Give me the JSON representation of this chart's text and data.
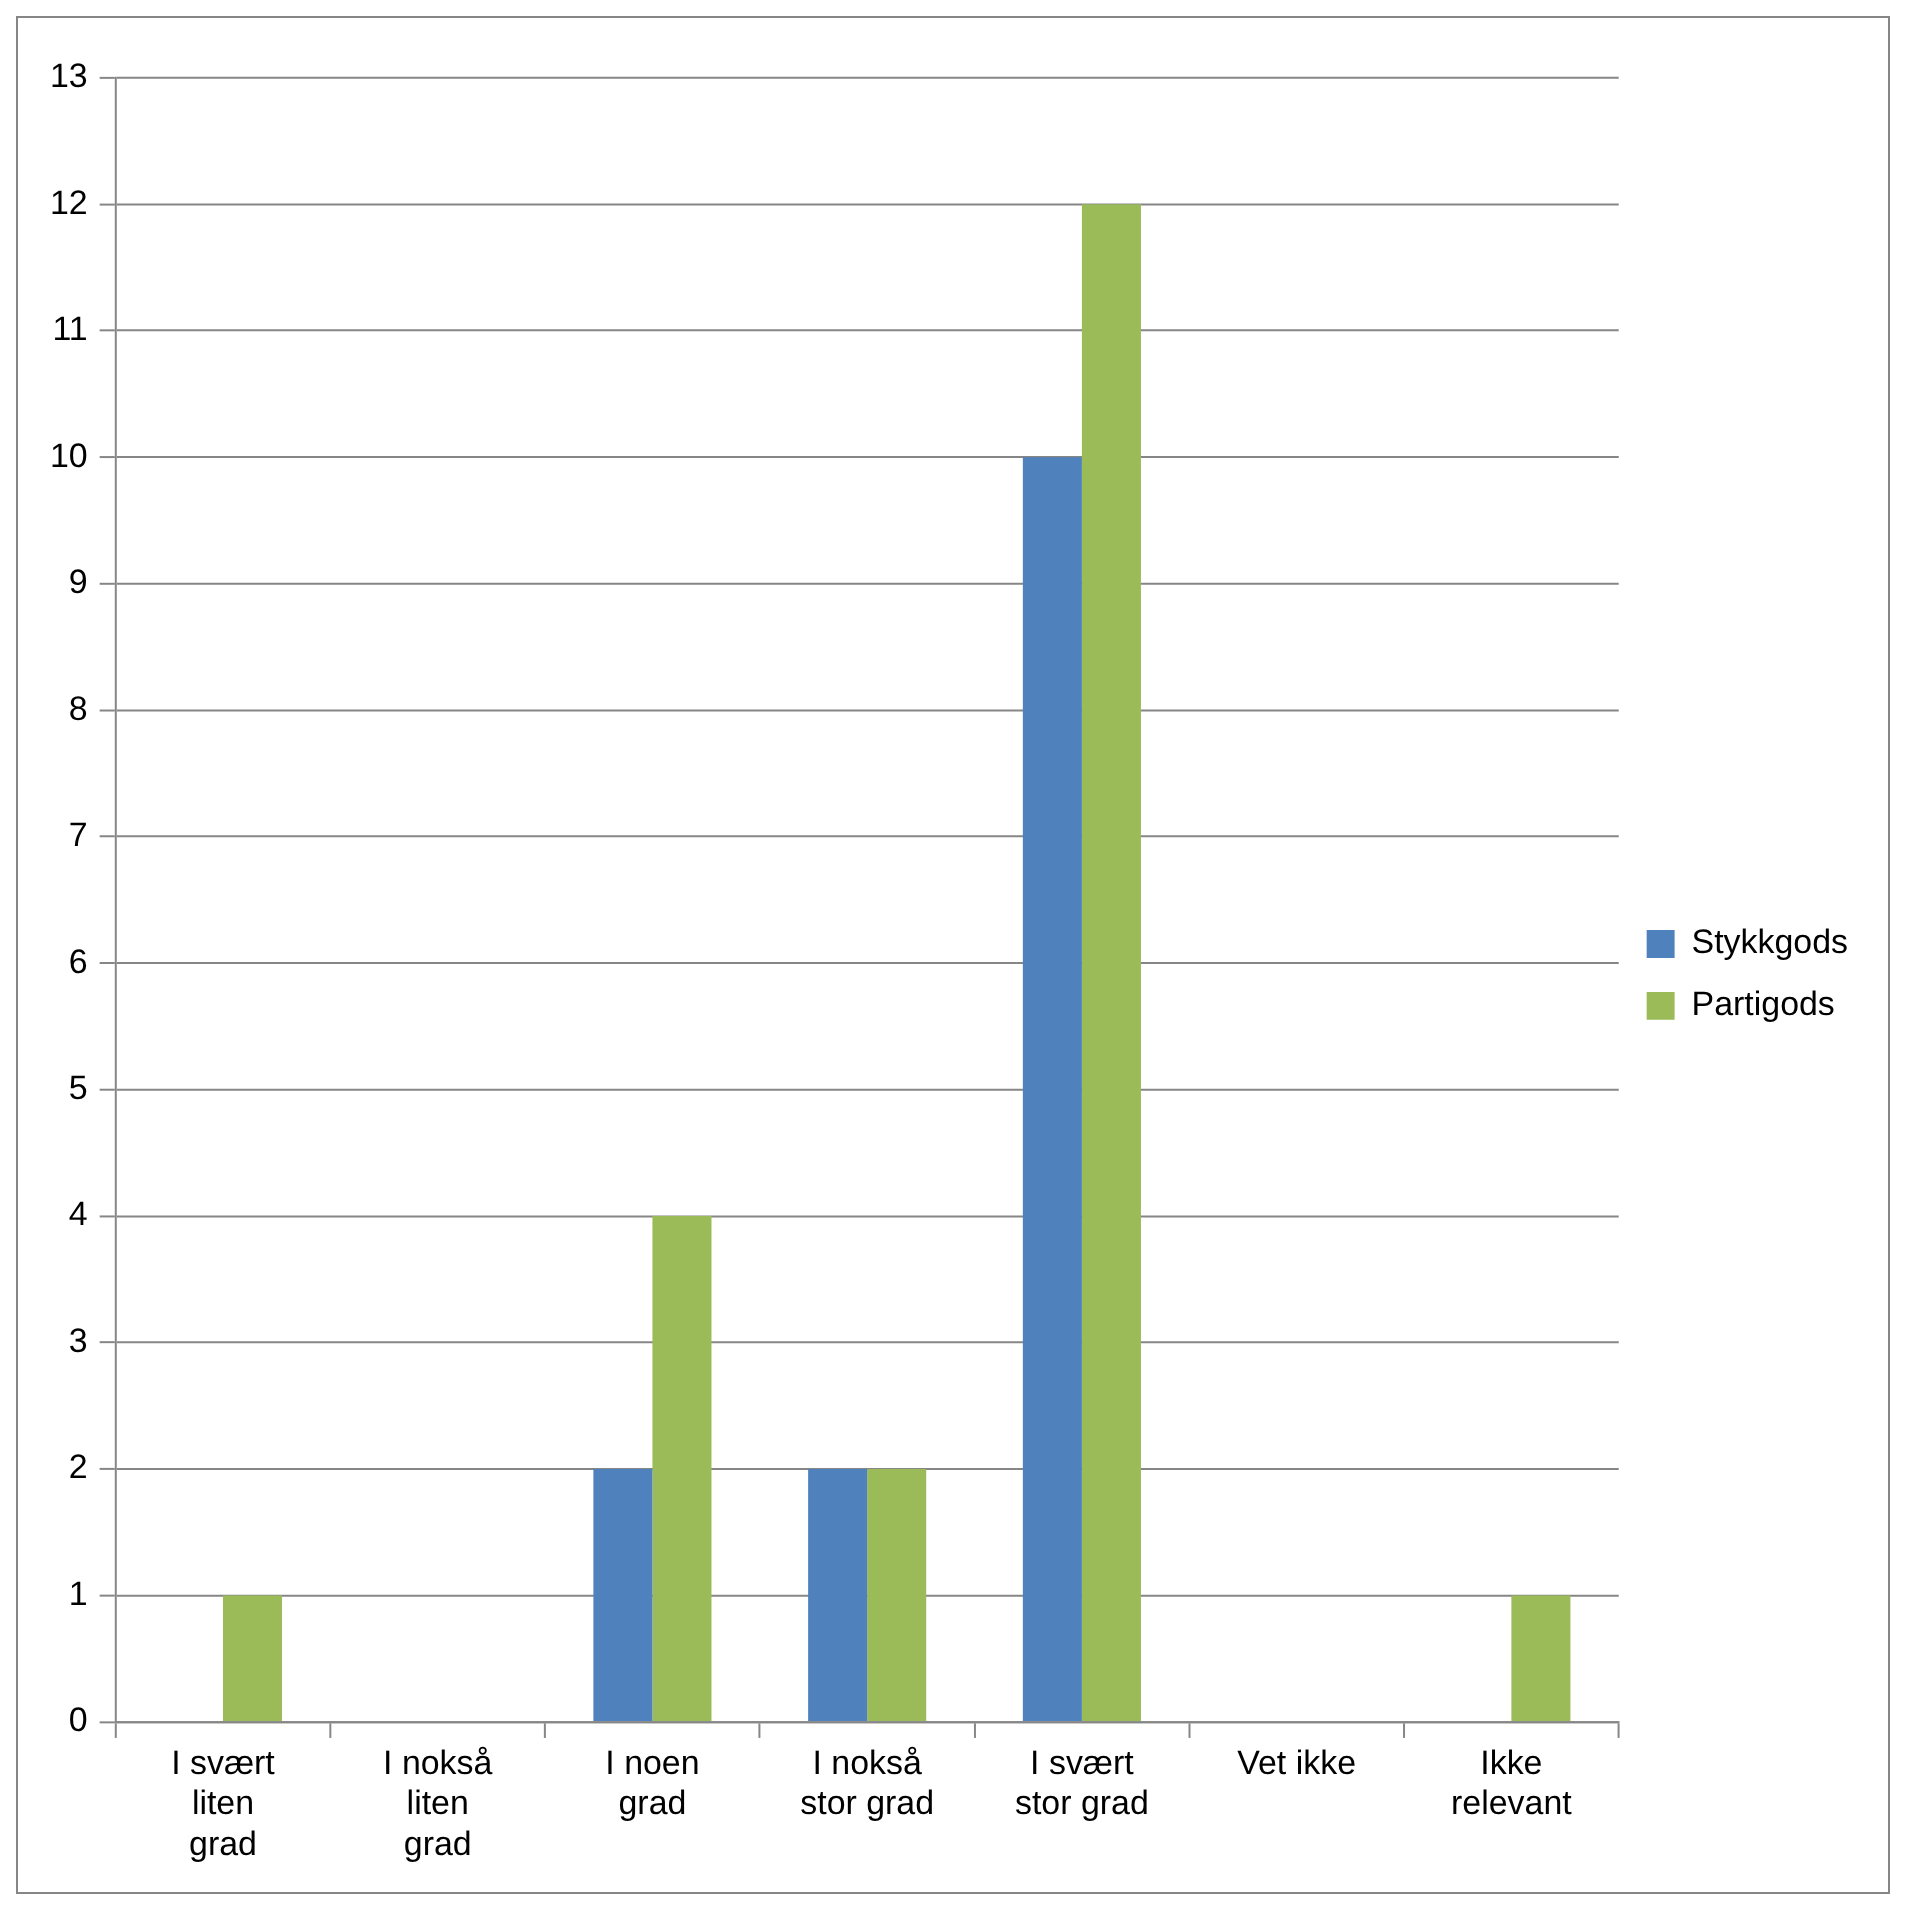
{
  "chart_data": {
    "type": "bar",
    "categories": [
      "I svært liten grad",
      "I nokså liten grad",
      "I noen grad",
      "I nokså stor grad",
      "I svært stor grad",
      "Vet ikke",
      "Ikke relevant"
    ],
    "series": [
      {
        "name": "Stykkgods",
        "color": "#4f81bd",
        "values": [
          0,
          0,
          2,
          2,
          10,
          0,
          0
        ]
      },
      {
        "name": "Partigods",
        "color": "#9bbb59",
        "values": [
          1,
          0,
          4,
          2,
          12,
          0,
          1
        ]
      }
    ],
    "ylim": [
      0,
      13
    ],
    "yticks": [
      0,
      1,
      2,
      3,
      4,
      5,
      6,
      7,
      8,
      9,
      10,
      11,
      12,
      13
    ],
    "grid": "y",
    "legend": "right"
  }
}
